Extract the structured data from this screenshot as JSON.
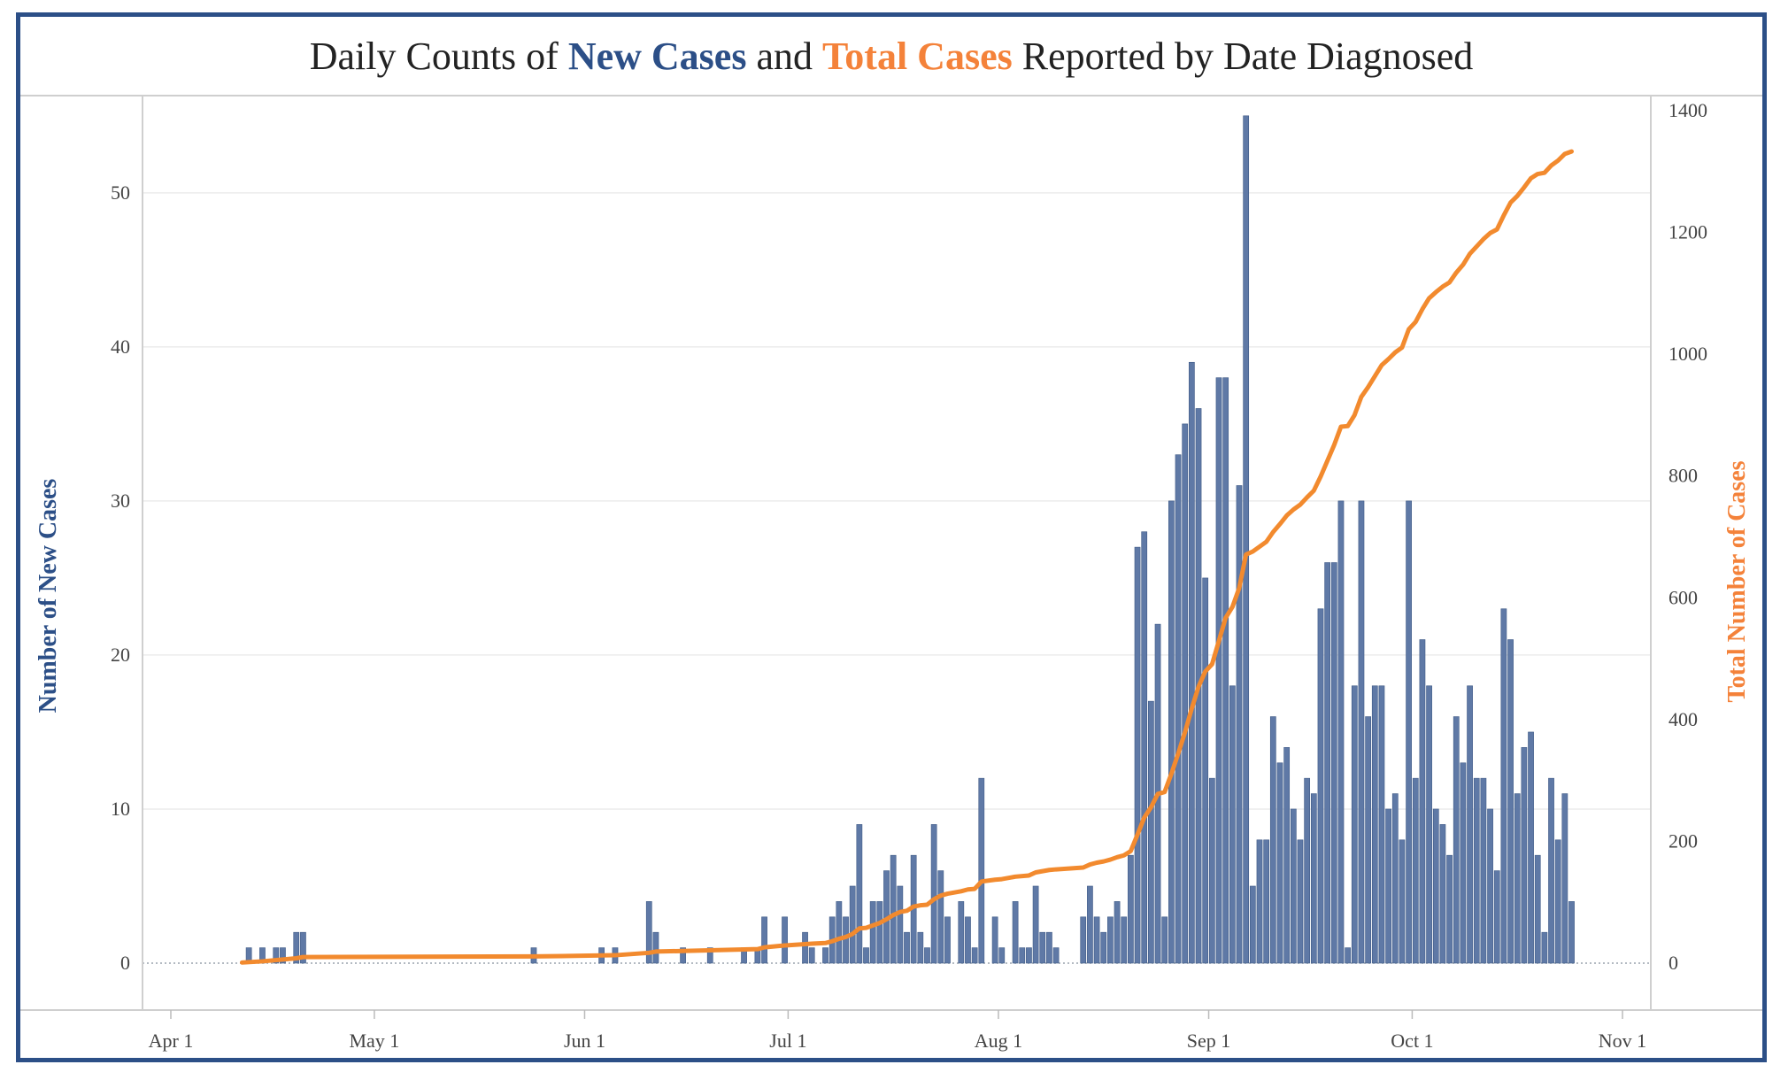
{
  "title": {
    "prefix": "Daily Counts of ",
    "new_cases": "New Cases",
    "and": " and ",
    "total_cases": "Total Cases",
    "suffix": " Reported by Date Diagnosed"
  },
  "colors": {
    "bar": "#5f79a6",
    "line": "#f28a2e",
    "title_blue": "#2c4f87",
    "title_orange": "#f4823a",
    "frame": "#2c4f87"
  },
  "chart_data": {
    "type": "bar+line",
    "title": "Daily Counts of New Cases and Total Cases Reported by Date Diagnosed",
    "xlabel": "",
    "ylabel": "Number of New Cases",
    "y2label": "Total Number of Cases",
    "x_tick_labels": [
      "Apr 1",
      "May 1",
      "Jun 1",
      "Jul 1",
      "Aug 1",
      "Sep 1",
      "Oct 1",
      "Nov 1"
    ],
    "x_tick_dates": [
      "2020-04-01",
      "2020-05-01",
      "2020-06-01",
      "2020-07-01",
      "2020-08-01",
      "2020-09-01",
      "2020-10-01",
      "2020-11-01"
    ],
    "xlim": [
      "2020-04-01",
      "2020-11-01"
    ],
    "y_ticks": [
      0,
      10,
      20,
      30,
      40,
      50
    ],
    "ylim": [
      0,
      57
    ],
    "y2_ticks": [
      0,
      200,
      400,
      600,
      800,
      1000,
      1200,
      1400
    ],
    "y2lim": [
      0,
      1400
    ],
    "grid": true,
    "series": [
      {
        "name": "New Cases",
        "axis": "left",
        "kind": "bar",
        "points": [
          [
            "2020-04-12",
            1
          ],
          [
            "2020-04-14",
            1
          ],
          [
            "2020-04-16",
            1
          ],
          [
            "2020-04-17",
            1
          ],
          [
            "2020-04-19",
            2
          ],
          [
            "2020-04-20",
            2
          ],
          [
            "2020-05-24",
            1
          ],
          [
            "2020-06-03",
            1
          ],
          [
            "2020-06-05",
            1
          ],
          [
            "2020-06-10",
            4
          ],
          [
            "2020-06-11",
            2
          ],
          [
            "2020-06-15",
            1
          ],
          [
            "2020-06-19",
            1
          ],
          [
            "2020-06-24",
            1
          ],
          [
            "2020-06-26",
            1
          ],
          [
            "2020-06-27",
            3
          ],
          [
            "2020-06-30",
            3
          ],
          [
            "2020-07-03",
            2
          ],
          [
            "2020-07-04",
            1
          ],
          [
            "2020-07-06",
            1
          ],
          [
            "2020-07-07",
            3
          ],
          [
            "2020-07-08",
            4
          ],
          [
            "2020-07-09",
            3
          ],
          [
            "2020-07-10",
            5
          ],
          [
            "2020-07-11",
            9
          ],
          [
            "2020-07-12",
            1
          ],
          [
            "2020-07-13",
            4
          ],
          [
            "2020-07-14",
            4
          ],
          [
            "2020-07-15",
            6
          ],
          [
            "2020-07-16",
            7
          ],
          [
            "2020-07-17",
            5
          ],
          [
            "2020-07-18",
            2
          ],
          [
            "2020-07-19",
            7
          ],
          [
            "2020-07-20",
            2
          ],
          [
            "2020-07-21",
            1
          ],
          [
            "2020-07-22",
            9
          ],
          [
            "2020-07-23",
            6
          ],
          [
            "2020-07-24",
            3
          ],
          [
            "2020-07-26",
            4
          ],
          [
            "2020-07-27",
            3
          ],
          [
            "2020-07-28",
            1
          ],
          [
            "2020-07-29",
            12
          ],
          [
            "2020-07-31",
            3
          ],
          [
            "2020-08-01",
            1
          ],
          [
            "2020-08-03",
            4
          ],
          [
            "2020-08-04",
            1
          ],
          [
            "2020-08-05",
            1
          ],
          [
            "2020-08-06",
            5
          ],
          [
            "2020-08-07",
            2
          ],
          [
            "2020-08-08",
            2
          ],
          [
            "2020-08-09",
            1
          ],
          [
            "2020-08-13",
            3
          ],
          [
            "2020-08-14",
            5
          ],
          [
            "2020-08-15",
            3
          ],
          [
            "2020-08-16",
            2
          ],
          [
            "2020-08-17",
            3
          ],
          [
            "2020-08-18",
            4
          ],
          [
            "2020-08-19",
            3
          ],
          [
            "2020-08-20",
            7
          ],
          [
            "2020-08-21",
            27
          ],
          [
            "2020-08-22",
            28
          ],
          [
            "2020-08-23",
            17
          ],
          [
            "2020-08-24",
            22
          ],
          [
            "2020-08-25",
            3
          ],
          [
            "2020-08-26",
            30
          ],
          [
            "2020-08-27",
            33
          ],
          [
            "2020-08-28",
            35
          ],
          [
            "2020-08-29",
            39
          ],
          [
            "2020-08-30",
            36
          ],
          [
            "2020-08-31",
            25
          ],
          [
            "2020-09-01",
            12
          ],
          [
            "2020-09-02",
            38
          ],
          [
            "2020-09-03",
            38
          ],
          [
            "2020-09-04",
            18
          ],
          [
            "2020-09-05",
            31
          ],
          [
            "2020-09-06",
            55
          ],
          [
            "2020-09-07",
            5
          ],
          [
            "2020-09-08",
            8
          ],
          [
            "2020-09-09",
            8
          ],
          [
            "2020-09-10",
            16
          ],
          [
            "2020-09-11",
            13
          ],
          [
            "2020-09-12",
            14
          ],
          [
            "2020-09-13",
            10
          ],
          [
            "2020-09-14",
            8
          ],
          [
            "2020-09-15",
            12
          ],
          [
            "2020-09-16",
            11
          ],
          [
            "2020-09-17",
            23
          ],
          [
            "2020-09-18",
            26
          ],
          [
            "2020-09-19",
            26
          ],
          [
            "2020-09-20",
            30
          ],
          [
            "2020-09-21",
            1
          ],
          [
            "2020-09-22",
            18
          ],
          [
            "2020-09-23",
            30
          ],
          [
            "2020-09-24",
            16
          ],
          [
            "2020-09-25",
            18
          ],
          [
            "2020-09-26",
            18
          ],
          [
            "2020-09-27",
            10
          ],
          [
            "2020-09-28",
            11
          ],
          [
            "2020-09-29",
            8
          ],
          [
            "2020-09-30",
            30
          ],
          [
            "2020-10-01",
            12
          ],
          [
            "2020-10-02",
            21
          ],
          [
            "2020-10-03",
            18
          ],
          [
            "2020-10-04",
            10
          ],
          [
            "2020-10-05",
            9
          ],
          [
            "2020-10-06",
            7
          ],
          [
            "2020-10-07",
            16
          ],
          [
            "2020-10-08",
            13
          ],
          [
            "2020-10-09",
            18
          ],
          [
            "2020-10-10",
            12
          ],
          [
            "2020-10-11",
            12
          ],
          [
            "2020-10-12",
            10
          ],
          [
            "2020-10-13",
            6
          ],
          [
            "2020-10-14",
            23
          ],
          [
            "2020-10-15",
            21
          ],
          [
            "2020-10-16",
            11
          ],
          [
            "2020-10-17",
            14
          ],
          [
            "2020-10-18",
            15
          ],
          [
            "2020-10-19",
            7
          ],
          [
            "2020-10-20",
            2
          ],
          [
            "2020-10-21",
            12
          ],
          [
            "2020-10-22",
            8
          ],
          [
            "2020-10-23",
            11
          ],
          [
            "2020-10-24",
            4
          ]
        ]
      },
      {
        "name": "Total Cases",
        "axis": "right",
        "kind": "line",
        "points": [
          [
            "2020-04-11",
            1
          ],
          [
            "2020-04-14",
            3
          ],
          [
            "2020-04-17",
            6
          ],
          [
            "2020-04-19",
            8
          ],
          [
            "2020-04-20",
            10
          ],
          [
            "2020-05-24",
            11
          ],
          [
            "2020-06-05",
            13
          ],
          [
            "2020-06-10",
            17
          ],
          [
            "2020-06-11",
            19
          ],
          [
            "2020-06-15",
            20
          ],
          [
            "2020-06-26",
            23
          ],
          [
            "2020-06-27",
            26
          ],
          [
            "2020-06-30",
            29
          ],
          [
            "2020-07-04",
            32
          ],
          [
            "2020-07-06",
            33
          ],
          [
            "2020-07-07",
            36
          ],
          [
            "2020-07-08",
            40
          ],
          [
            "2020-07-09",
            43
          ],
          [
            "2020-07-10",
            48
          ],
          [
            "2020-07-11",
            57
          ],
          [
            "2020-07-12",
            58
          ],
          [
            "2020-07-14",
            66
          ],
          [
            "2020-07-15",
            72
          ],
          [
            "2020-07-16",
            79
          ],
          [
            "2020-07-17",
            84
          ],
          [
            "2020-07-18",
            86
          ],
          [
            "2020-07-19",
            93
          ],
          [
            "2020-07-20",
            95
          ],
          [
            "2020-07-21",
            96
          ],
          [
            "2020-07-22",
            105
          ],
          [
            "2020-07-23",
            111
          ],
          [
            "2020-07-24",
            114
          ],
          [
            "2020-07-26",
            118
          ],
          [
            "2020-07-27",
            121
          ],
          [
            "2020-07-28",
            122
          ],
          [
            "2020-07-29",
            134
          ],
          [
            "2020-07-31",
            137
          ],
          [
            "2020-08-01",
            138
          ],
          [
            "2020-08-03",
            142
          ],
          [
            "2020-08-05",
            144
          ],
          [
            "2020-08-06",
            149
          ],
          [
            "2020-08-08",
            153
          ],
          [
            "2020-08-09",
            154
          ],
          [
            "2020-08-13",
            157
          ],
          [
            "2020-08-14",
            162
          ],
          [
            "2020-08-15",
            165
          ],
          [
            "2020-08-16",
            167
          ],
          [
            "2020-08-17",
            170
          ],
          [
            "2020-08-18",
            174
          ],
          [
            "2020-08-19",
            177
          ],
          [
            "2020-08-20",
            184
          ],
          [
            "2020-08-21",
            211
          ],
          [
            "2020-08-22",
            239
          ],
          [
            "2020-08-23",
            256
          ],
          [
            "2020-08-24",
            278
          ],
          [
            "2020-08-25",
            281
          ],
          [
            "2020-08-26",
            311
          ],
          [
            "2020-08-27",
            344
          ],
          [
            "2020-08-28",
            379
          ],
          [
            "2020-08-29",
            418
          ],
          [
            "2020-08-30",
            454
          ],
          [
            "2020-08-31",
            479
          ],
          [
            "2020-09-01",
            491
          ],
          [
            "2020-09-02",
            529
          ],
          [
            "2020-09-03",
            567
          ],
          [
            "2020-09-04",
            585
          ],
          [
            "2020-09-05",
            616
          ],
          [
            "2020-09-06",
            671
          ],
          [
            "2020-09-07",
            676
          ],
          [
            "2020-09-08",
            684
          ],
          [
            "2020-09-09",
            692
          ],
          [
            "2020-09-10",
            708
          ],
          [
            "2020-09-11",
            721
          ],
          [
            "2020-09-12",
            735
          ],
          [
            "2020-09-13",
            745
          ],
          [
            "2020-09-14",
            753
          ],
          [
            "2020-09-15",
            765
          ],
          [
            "2020-09-16",
            776
          ],
          [
            "2020-09-17",
            799
          ],
          [
            "2020-09-18",
            825
          ],
          [
            "2020-09-19",
            851
          ],
          [
            "2020-09-20",
            881
          ],
          [
            "2020-09-21",
            882
          ],
          [
            "2020-09-22",
            900
          ],
          [
            "2020-09-23",
            930
          ],
          [
            "2020-09-24",
            946
          ],
          [
            "2020-09-25",
            964
          ],
          [
            "2020-09-26",
            982
          ],
          [
            "2020-09-27",
            992
          ],
          [
            "2020-09-28",
            1003
          ],
          [
            "2020-09-29",
            1011
          ],
          [
            "2020-09-30",
            1041
          ],
          [
            "2020-10-01",
            1053
          ],
          [
            "2020-10-02",
            1074
          ],
          [
            "2020-10-03",
            1092
          ],
          [
            "2020-10-04",
            1102
          ],
          [
            "2020-10-05",
            1111
          ],
          [
            "2020-10-06",
            1118
          ],
          [
            "2020-10-07",
            1134
          ],
          [
            "2020-10-08",
            1147
          ],
          [
            "2020-10-09",
            1165
          ],
          [
            "2020-10-10",
            1177
          ],
          [
            "2020-10-11",
            1189
          ],
          [
            "2020-10-12",
            1199
          ],
          [
            "2020-10-13",
            1205
          ],
          [
            "2020-10-14",
            1228
          ],
          [
            "2020-10-15",
            1249
          ],
          [
            "2020-10-16",
            1260
          ],
          [
            "2020-10-17",
            1274
          ],
          [
            "2020-10-18",
            1289
          ],
          [
            "2020-10-19",
            1296
          ],
          [
            "2020-10-20",
            1298
          ],
          [
            "2020-10-21",
            1310
          ],
          [
            "2020-10-22",
            1318
          ],
          [
            "2020-10-23",
            1329
          ],
          [
            "2020-10-24",
            1333
          ]
        ]
      }
    ]
  }
}
